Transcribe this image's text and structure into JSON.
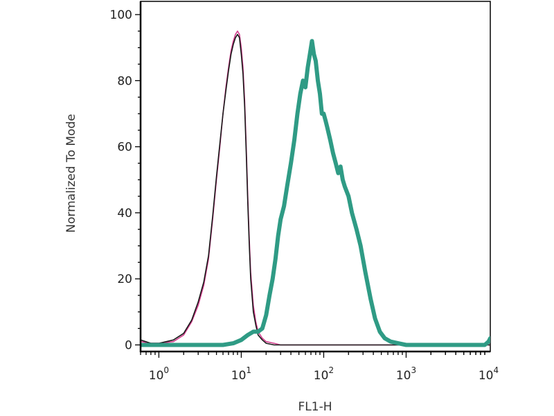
{
  "chart_data": {
    "type": "line",
    "title": "",
    "xlabel": "FL1-H",
    "ylabel": "Normalized To Mode",
    "x_scale": "log",
    "xlim": [
      0.6,
      10500
    ],
    "ylim": [
      -2,
      104
    ],
    "grid": false,
    "legend": "none",
    "x_ticks": [
      {
        "value": 1,
        "base": "10",
        "exp": "0"
      },
      {
        "value": 10,
        "base": "10",
        "exp": "1"
      },
      {
        "value": 100,
        "base": "10",
        "exp": "2"
      },
      {
        "value": 1000,
        "base": "10",
        "exp": "3"
      },
      {
        "value": 10000,
        "base": "10",
        "exp": "4"
      }
    ],
    "y_ticks": [
      {
        "value": 0,
        "label": "0"
      },
      {
        "value": 20,
        "label": "20"
      },
      {
        "value": 40,
        "label": "40"
      },
      {
        "value": 60,
        "label": "60"
      },
      {
        "value": 80,
        "label": "80"
      },
      {
        "value": 100,
        "label": "100"
      }
    ],
    "series": [
      {
        "color": "#d23c8c",
        "stroke": "thin",
        "points": [
          [
            0.6,
            1
          ],
          [
            0.8,
            0.5
          ],
          [
            1.0,
            0.5
          ],
          [
            1.5,
            1
          ],
          [
            2.0,
            3
          ],
          [
            2.5,
            7
          ],
          [
            3.0,
            12
          ],
          [
            3.5,
            18
          ],
          [
            4.0,
            26
          ],
          [
            4.5,
            38
          ],
          [
            5.0,
            50
          ],
          [
            5.5,
            60
          ],
          [
            6.0,
            70
          ],
          [
            6.5,
            78
          ],
          [
            7.0,
            84
          ],
          [
            7.5,
            89
          ],
          [
            8.0,
            92
          ],
          [
            8.5,
            94
          ],
          [
            9.0,
            95
          ],
          [
            9.5,
            94
          ],
          [
            10.0,
            90
          ],
          [
            10.5,
            84
          ],
          [
            11.0,
            74
          ],
          [
            11.5,
            60
          ],
          [
            12.0,
            45
          ],
          [
            12.5,
            32
          ],
          [
            13.0,
            22
          ],
          [
            14.0,
            12
          ],
          [
            15.0,
            7
          ],
          [
            16.0,
            4
          ],
          [
            18.0,
            2
          ],
          [
            20.0,
            1
          ],
          [
            25.0,
            0.5
          ],
          [
            30.0,
            0
          ],
          [
            10500,
            0
          ]
        ]
      },
      {
        "color": "#1a1a1a",
        "stroke": "thin",
        "points": [
          [
            0.6,
            1.5
          ],
          [
            0.8,
            0.5
          ],
          [
            1.0,
            0.5
          ],
          [
            1.5,
            1.5
          ],
          [
            2.0,
            3.5
          ],
          [
            2.5,
            7.5
          ],
          [
            3.0,
            13
          ],
          [
            3.5,
            19
          ],
          [
            4.0,
            27
          ],
          [
            4.5,
            39
          ],
          [
            5.0,
            51
          ],
          [
            5.5,
            61
          ],
          [
            6.0,
            70
          ],
          [
            6.5,
            77
          ],
          [
            7.0,
            83
          ],
          [
            7.5,
            88
          ],
          [
            8.0,
            91
          ],
          [
            8.5,
            93
          ],
          [
            9.0,
            94
          ],
          [
            9.5,
            93
          ],
          [
            10.0,
            88
          ],
          [
            10.5,
            82
          ],
          [
            11.0,
            72
          ],
          [
            11.5,
            58
          ],
          [
            12.0,
            43
          ],
          [
            12.5,
            30
          ],
          [
            13.0,
            20
          ],
          [
            14.0,
            10
          ],
          [
            15.0,
            6
          ],
          [
            16.0,
            3
          ],
          [
            18.0,
            1.5
          ],
          [
            20.0,
            0.5
          ],
          [
            25.0,
            0
          ],
          [
            10500,
            0
          ]
        ]
      },
      {
        "color": "#2f9b85",
        "stroke": "thick",
        "points": [
          [
            0.6,
            0
          ],
          [
            6,
            0
          ],
          [
            8,
            0.5
          ],
          [
            10,
            1.5
          ],
          [
            12,
            3
          ],
          [
            14,
            4
          ],
          [
            16,
            4
          ],
          [
            18,
            5
          ],
          [
            20,
            9
          ],
          [
            22,
            15
          ],
          [
            24,
            20
          ],
          [
            26,
            26
          ],
          [
            28,
            33
          ],
          [
            30,
            38
          ],
          [
            33,
            42
          ],
          [
            36,
            48
          ],
          [
            40,
            55
          ],
          [
            44,
            62
          ],
          [
            48,
            70
          ],
          [
            52,
            76
          ],
          [
            56,
            80
          ],
          [
            60,
            78
          ],
          [
            64,
            84
          ],
          [
            68,
            88
          ],
          [
            72,
            92
          ],
          [
            76,
            88
          ],
          [
            80,
            86
          ],
          [
            85,
            80
          ],
          [
            90,
            76
          ],
          [
            95,
            70
          ],
          [
            100,
            70
          ],
          [
            105,
            68
          ],
          [
            110,
            66
          ],
          [
            120,
            62
          ],
          [
            130,
            58
          ],
          [
            140,
            55
          ],
          [
            150,
            52
          ],
          [
            160,
            54
          ],
          [
            170,
            50
          ],
          [
            180,
            48
          ],
          [
            200,
            45
          ],
          [
            220,
            40
          ],
          [
            250,
            35
          ],
          [
            280,
            30
          ],
          [
            320,
            22
          ],
          [
            370,
            14
          ],
          [
            420,
            8
          ],
          [
            480,
            4
          ],
          [
            550,
            2
          ],
          [
            650,
            1
          ],
          [
            800,
            0.5
          ],
          [
            1000,
            0
          ],
          [
            9000,
            0
          ],
          [
            10000,
            1
          ],
          [
            10500,
            2
          ]
        ]
      }
    ]
  }
}
